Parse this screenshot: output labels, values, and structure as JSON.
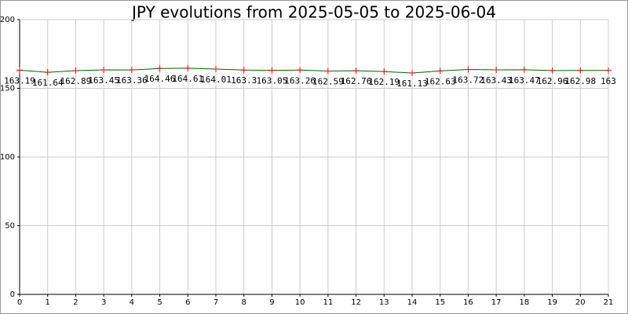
{
  "chart_data": {
    "type": "line",
    "title": "JPY evolutions from 2025-05-05 to 2025-06-04",
    "x": [
      0,
      1,
      2,
      3,
      4,
      5,
      6,
      7,
      8,
      9,
      10,
      11,
      12,
      13,
      14,
      15,
      16,
      17,
      18,
      19,
      20,
      21
    ],
    "series": [
      {
        "color": "#006400",
        "marker_color": "#ff0000",
        "values": [
          163.19,
          161.64,
          162.89,
          163.45,
          163.36,
          164.46,
          164.61,
          164.01,
          163.3,
          163.05,
          163.26,
          162.59,
          162.76,
          162.19,
          161.13,
          162.63,
          163.72,
          163.43,
          163.47,
          162.96,
          162.98,
          163
        ]
      }
    ],
    "xlim": [
      0,
      21
    ],
    "xticks": [
      0,
      1,
      2,
      3,
      4,
      5,
      6,
      7,
      8,
      9,
      10,
      11,
      12,
      13,
      14,
      15,
      16,
      17,
      18,
      19,
      20,
      21
    ],
    "ylim": [
      0,
      200
    ],
    "yticks": [
      0,
      50,
      100,
      150,
      200
    ],
    "grid": true
  }
}
